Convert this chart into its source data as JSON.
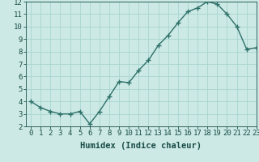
{
  "x": [
    0,
    1,
    2,
    3,
    4,
    5,
    6,
    7,
    8,
    9,
    10,
    11,
    12,
    13,
    14,
    15,
    16,
    17,
    18,
    19,
    20,
    21,
    22,
    23
  ],
  "y": [
    4.0,
    3.5,
    3.2,
    3.0,
    3.0,
    3.2,
    2.2,
    3.2,
    4.4,
    5.6,
    5.5,
    6.5,
    7.3,
    8.5,
    9.3,
    10.3,
    11.2,
    11.5,
    12.0,
    11.8,
    11.0,
    10.0,
    8.2,
    8.3
  ],
  "xlabel": "Humidex (Indice chaleur)",
  "xlim": [
    -0.5,
    23
  ],
  "ylim": [
    2,
    12
  ],
  "yticks": [
    2,
    3,
    4,
    5,
    6,
    7,
    8,
    9,
    10,
    11,
    12
  ],
  "xticks": [
    0,
    1,
    2,
    3,
    4,
    5,
    6,
    7,
    8,
    9,
    10,
    11,
    12,
    13,
    14,
    15,
    16,
    17,
    18,
    19,
    20,
    21,
    22,
    23
  ],
  "line_color": "#2d7068",
  "marker": "+",
  "bg_color": "#cce9e5",
  "grid_color": "#a8d5d0",
  "tick_label_color": "#1a4d47",
  "xlabel_fontsize": 7.5,
  "tick_fontsize": 6.5,
  "line_width": 1.0,
  "marker_size": 4,
  "marker_edge_width": 1.0
}
